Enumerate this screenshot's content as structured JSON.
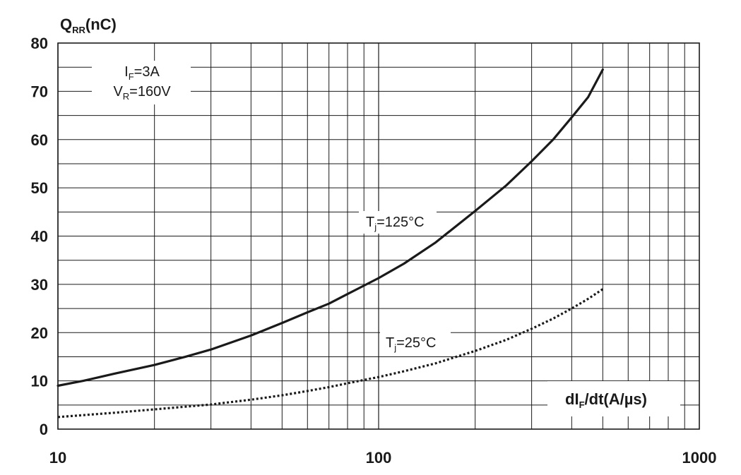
{
  "chart_data": {
    "type": "line",
    "x_scale": "log",
    "y_scale": "linear",
    "xlim": [
      10,
      1000
    ],
    "ylim": [
      0,
      80
    ],
    "grid": true,
    "x_ticks": [
      "10",
      "100",
      "1000"
    ],
    "y_ticks": [
      "0",
      "10",
      "20",
      "30",
      "40",
      "50",
      "60",
      "70",
      "80"
    ],
    "ylabel": {
      "main": "Q",
      "sub": "RR",
      "rest": "(nC)"
    },
    "xlabel": {
      "main": "dI",
      "sub": "F",
      "rest": "/dt(A/µs)"
    },
    "conditions": {
      "if": {
        "main": "I",
        "sub": "F",
        "rest": "=3A"
      },
      "vr": {
        "main": "V",
        "sub": "R",
        "rest": "=160V"
      }
    },
    "series": [
      {
        "name": {
          "main": "T",
          "sub": "j",
          "rest": "=125°C"
        },
        "style": "solid",
        "color": "#1a1a1a",
        "x": [
          10,
          12,
          15,
          20,
          25,
          30,
          40,
          50,
          60,
          70,
          80,
          100,
          120,
          150,
          200,
          250,
          300,
          350,
          400,
          450,
          500
        ],
        "y": [
          9,
          10,
          11.5,
          13.3,
          15,
          16.5,
          19.4,
          22,
          24.2,
          26,
          28,
          31.3,
          34.3,
          38.6,
          45.2,
          50.5,
          55.5,
          60,
          64.6,
          68.8,
          74.5
        ]
      },
      {
        "name": {
          "main": "T",
          "sub": "j",
          "rest": "=25°C"
        },
        "style": "dotted",
        "color": "#1a1a1a",
        "x": [
          10,
          15,
          20,
          30,
          40,
          50,
          60,
          70,
          80,
          100,
          120,
          150,
          200,
          250,
          300,
          350,
          400,
          450,
          500
        ],
        "y": [
          2.5,
          3.4,
          4.1,
          5.1,
          6.1,
          7,
          7.9,
          8.7,
          9.5,
          10.8,
          12,
          13.6,
          16.2,
          18.5,
          20.8,
          22.9,
          25,
          27,
          29
        ]
      }
    ]
  }
}
